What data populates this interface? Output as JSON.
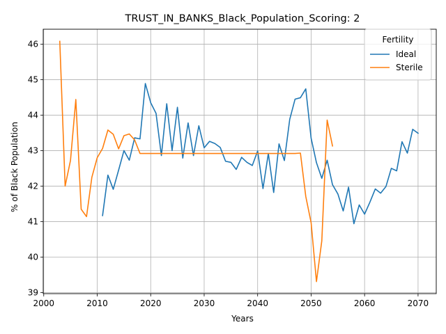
{
  "chart_data": {
    "type": "line",
    "title": "TRUST_IN_BANKS_Black_Population_Scoring: 2",
    "xlabel": "Years",
    "ylabel": "% of Black Population",
    "xlim": [
      1999.9,
      2073.4
    ],
    "ylim": [
      38.97,
      46.42
    ],
    "xticks": [
      2000,
      2010,
      2020,
      2030,
      2040,
      2050,
      2060,
      2070
    ],
    "yticks": [
      39,
      40,
      41,
      42,
      43,
      44,
      45,
      46
    ],
    "grid": true,
    "legend": {
      "title": "Fertility",
      "placement": "top-right"
    },
    "series": [
      {
        "name": "Ideal",
        "color": "#1f77b4",
        "x": [
          2011,
          2012,
          2013,
          2014,
          2015,
          2016,
          2017,
          2018,
          2019,
          2020,
          2021,
          2022,
          2023,
          2024,
          2025,
          2026,
          2027,
          2028,
          2029,
          2030,
          2031,
          2032,
          2033,
          2034,
          2035,
          2036,
          2037,
          2038,
          2039,
          2040,
          2041,
          2042,
          2043,
          2044,
          2045,
          2046,
          2047,
          2048,
          2049,
          2050,
          2051,
          2052,
          2053,
          2054,
          2055,
          2056,
          2057,
          2058,
          2059,
          2060,
          2061,
          2062,
          2063,
          2064,
          2065,
          2066,
          2067,
          2068,
          2069,
          2070
        ],
        "values": [
          41.17,
          42.31,
          41.91,
          42.45,
          43.0,
          42.73,
          43.36,
          43.33,
          44.89,
          44.35,
          44.05,
          42.86,
          44.32,
          43.0,
          44.22,
          42.79,
          43.78,
          42.86,
          43.7,
          43.08,
          43.26,
          43.2,
          43.09,
          42.7,
          42.67,
          42.47,
          42.81,
          42.67,
          42.58,
          42.99,
          41.93,
          42.92,
          41.82,
          43.19,
          42.72,
          43.88,
          44.45,
          44.49,
          44.74,
          43.35,
          42.66,
          42.22,
          42.73,
          42.04,
          41.78,
          41.3,
          41.97,
          40.94,
          41.47,
          41.21,
          41.55,
          41.92,
          41.8,
          41.99,
          42.5,
          42.43,
          43.25,
          42.93,
          43.6,
          43.49
        ]
      },
      {
        "name": "Sterile",
        "color": "#ff7f0e",
        "x": [
          2003,
          2004,
          2005,
          2006,
          2007,
          2008,
          2009,
          2010,
          2011,
          2012,
          2013,
          2014,
          2015,
          2016,
          2017,
          2018,
          2019,
          2020,
          2021,
          2022,
          2023,
          2024,
          2025,
          2026,
          2027,
          2028,
          2029,
          2030,
          2031,
          2032,
          2033,
          2034,
          2035,
          2036,
          2037,
          2038,
          2039,
          2040,
          2041,
          2042,
          2043,
          2044,
          2045,
          2046,
          2047,
          2048,
          2049,
          2050,
          2051,
          2052,
          2053,
          2054
        ],
        "values": [
          46.08,
          42.0,
          42.72,
          44.44,
          41.35,
          41.14,
          42.25,
          42.8,
          43.06,
          43.58,
          43.46,
          43.05,
          43.42,
          43.47,
          43.3,
          42.92,
          42.92,
          42.92,
          42.92,
          42.92,
          42.92,
          42.92,
          42.92,
          42.92,
          42.92,
          42.92,
          42.92,
          42.92,
          42.92,
          42.92,
          42.92,
          42.92,
          42.92,
          42.92,
          42.92,
          42.92,
          42.92,
          42.92,
          42.92,
          42.92,
          42.92,
          42.92,
          42.92,
          42.92,
          42.92,
          42.93,
          41.71,
          40.97,
          39.31,
          40.46,
          43.86,
          43.13
        ]
      }
    ]
  }
}
